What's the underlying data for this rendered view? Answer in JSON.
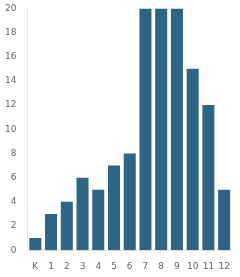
{
  "chart_data": {
    "type": "bar",
    "categories": [
      "K",
      "1",
      "2",
      "3",
      "4",
      "5",
      "6",
      "7",
      "8",
      "9",
      "10",
      "11",
      "12"
    ],
    "values": [
      1,
      3,
      4,
      6,
      5,
      7,
      8,
      20,
      20,
      20,
      15,
      12,
      5
    ],
    "color": "#2e6484",
    "ylim": [
      0,
      20
    ],
    "yticks": [
      0,
      2,
      4,
      6,
      8,
      10,
      12,
      14,
      16,
      18,
      20
    ],
    "grid": false
  }
}
